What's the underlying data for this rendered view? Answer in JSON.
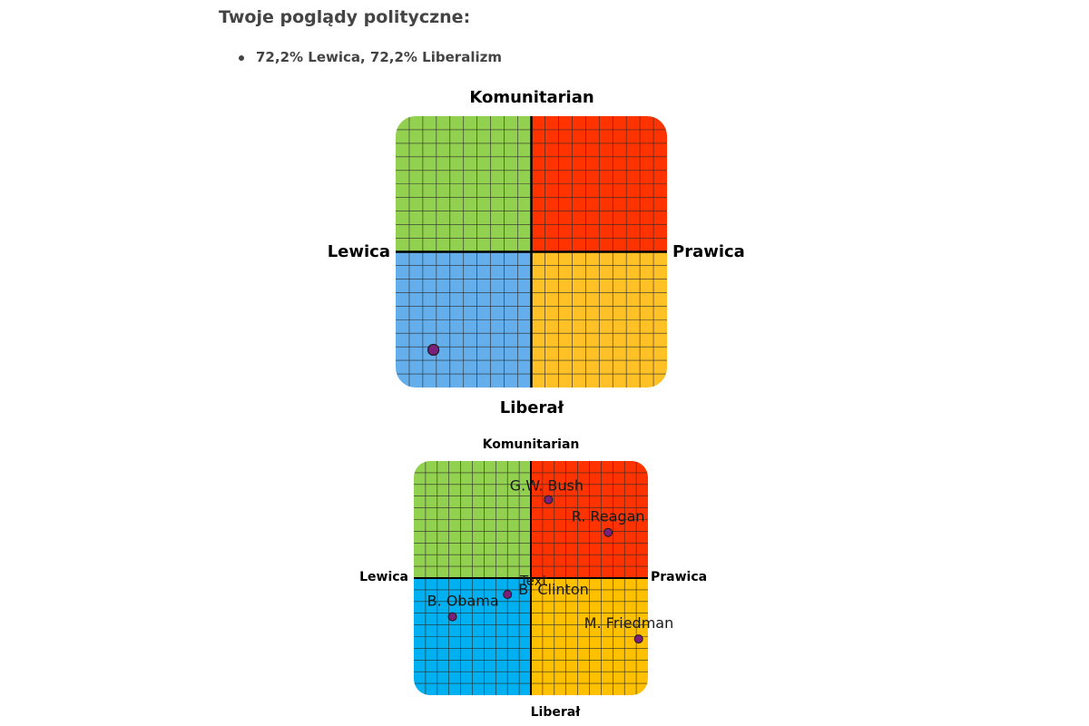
{
  "page": {
    "title": "Twoje poglądy polityczne:",
    "result": "72,2% Lewica, 72,2% Liberalizm"
  },
  "compass_user": {
    "labels": {
      "top": "Komunitarian",
      "bottom": "Liberał",
      "left": "Lewica",
      "right": "Prawica"
    },
    "colors": {
      "top_left": "#92D050",
      "top_right": "#FF3300",
      "bottom_left": "#63AEEB",
      "bottom_right": "#FFC125",
      "grid": "#2b2b2b",
      "axis": "#000000",
      "marker": "#7A1F7A"
    },
    "position": {
      "economic": -72.2,
      "social": -72.2
    }
  },
  "compass_reference": {
    "labels": {
      "top": "Komunitarian",
      "bottom": "Liberał",
      "left": "Lewica",
      "right": "Prawica"
    },
    "colors": {
      "top_left": "#92D050",
      "top_right": "#FF3300",
      "bottom_left": "#00B0F0",
      "bottom_right": "#FFC000",
      "grid": "#2b2b2b",
      "axis": "#000000",
      "marker": "#7A1F7A"
    },
    "points": [
      {
        "name": "G.W. Bush",
        "economic": 15,
        "social": 67
      },
      {
        "name": "R. Reagan",
        "economic": 66,
        "social": 39
      },
      {
        "name": "Text",
        "economic": null,
        "social": null
      },
      {
        "name": "B. Clinton",
        "economic": -20,
        "social": -14
      },
      {
        "name": "B. Obama",
        "economic": -67,
        "social": -33
      },
      {
        "name": "M. Friedman",
        "economic": 92,
        "social": -52
      }
    ]
  }
}
